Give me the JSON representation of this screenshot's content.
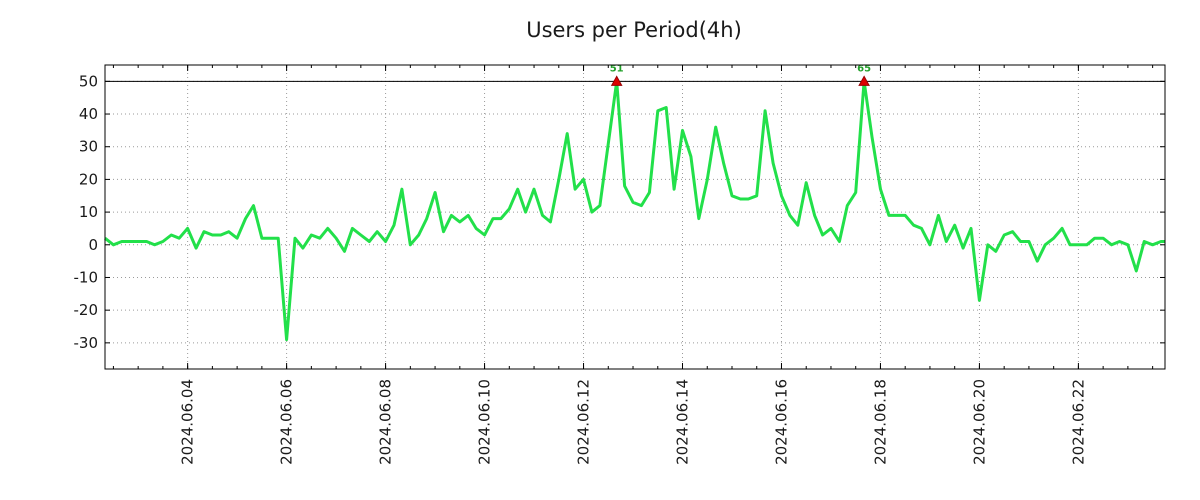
{
  "chart_data": {
    "type": "line",
    "title": "Users per Period(4h)",
    "xlabel": "",
    "ylabel": "",
    "ylim": [
      -38,
      55
    ],
    "yticks": [
      -30,
      -20,
      -10,
      0,
      10,
      20,
      30,
      40,
      50
    ],
    "ytick_labels": [
      "-30",
      "-20",
      "-10",
      "0",
      "10",
      "20",
      "30",
      "40",
      "50"
    ],
    "x_range_days": [
      2.33,
      23.75
    ],
    "xticks_day": [
      4,
      6,
      8,
      10,
      12,
      14,
      16,
      18,
      20,
      22
    ],
    "xtick_labels": [
      "2024.06.04",
      "2024.06.06",
      "2024.06.08",
      "2024.06.10",
      "2024.06.12",
      "2024.06.14",
      "2024.06.16",
      "2024.06.18",
      "2024.06.20",
      "2024.06.22"
    ],
    "reference_line": 50,
    "grid": true,
    "line_color": "#22e04a",
    "marker_color": "#dd0000",
    "peaks": [
      {
        "label": "51",
        "x_day": 12.67,
        "y": 50
      },
      {
        "label": "65",
        "x_day": 17.67,
        "y": 50
      }
    ],
    "series": [
      {
        "name": "Users",
        "x_day": [
          2.33,
          2.5,
          2.67,
          2.83,
          3.0,
          3.17,
          3.33,
          3.5,
          3.67,
          3.83,
          4.0,
          4.17,
          4.33,
          4.5,
          4.67,
          4.83,
          5.0,
          5.17,
          5.33,
          5.5,
          5.67,
          5.83,
          6.0,
          6.17,
          6.33,
          6.5,
          6.67,
          6.83,
          7.0,
          7.17,
          7.33,
          7.5,
          7.67,
          7.83,
          8.0,
          8.17,
          8.33,
          8.5,
          8.67,
          8.83,
          9.0,
          9.17,
          9.33,
          9.5,
          9.67,
          9.83,
          10.0,
          10.17,
          10.33,
          10.5,
          10.67,
          10.83,
          11.0,
          11.17,
          11.33,
          11.5,
          11.67,
          11.83,
          12.0,
          12.17,
          12.33,
          12.5,
          12.67,
          12.83,
          13.0,
          13.17,
          13.33,
          13.5,
          13.67,
          13.83,
          14.0,
          14.17,
          14.33,
          14.5,
          14.67,
          14.83,
          15.0,
          15.17,
          15.33,
          15.5,
          15.67,
          15.83,
          16.0,
          16.17,
          16.33,
          16.5,
          16.67,
          16.83,
          17.0,
          17.17,
          17.33,
          17.5,
          17.67,
          17.83,
          18.0,
          18.17,
          18.33,
          18.5,
          18.67,
          18.83,
          19.0,
          19.17,
          19.33,
          19.5,
          19.67,
          19.83,
          20.0,
          20.17,
          20.33,
          20.5,
          20.67,
          20.83,
          21.0,
          21.17,
          21.33,
          21.5,
          21.67,
          21.83,
          22.0,
          22.17,
          22.33,
          22.5,
          22.67,
          22.83,
          23.0,
          23.17,
          23.33,
          23.5,
          23.67,
          23.75
        ],
        "y": [
          2,
          0,
          1,
          1,
          1,
          1,
          0,
          1,
          3,
          2,
          5,
          -1,
          4,
          3,
          3,
          4,
          2,
          8,
          12,
          2,
          2,
          2,
          -29,
          2,
          -1,
          3,
          2,
          5,
          2,
          -2,
          5,
          3,
          1,
          4,
          1,
          6,
          17,
          0,
          3,
          8,
          16,
          4,
          9,
          7,
          9,
          5,
          3,
          8,
          8,
          11,
          17,
          10,
          17,
          9,
          7,
          20,
          34,
          17,
          20,
          10,
          12,
          31,
          50,
          18,
          13,
          12,
          16,
          41,
          42,
          17,
          35,
          27,
          8,
          20,
          36,
          25,
          15,
          14,
          14,
          15,
          41,
          25,
          15,
          9,
          6,
          19,
          9,
          3,
          5,
          1,
          12,
          16,
          50,
          33,
          17,
          9,
          9,
          9,
          6,
          5,
          0,
          9,
          1,
          6,
          -1,
          5,
          -17,
          0,
          -2,
          3,
          4,
          1,
          1,
          -5,
          0,
          2,
          5,
          0,
          0,
          0,
          2,
          2,
          0,
          1,
          0,
          -8,
          1,
          0,
          1,
          1
        ]
      }
    ]
  }
}
